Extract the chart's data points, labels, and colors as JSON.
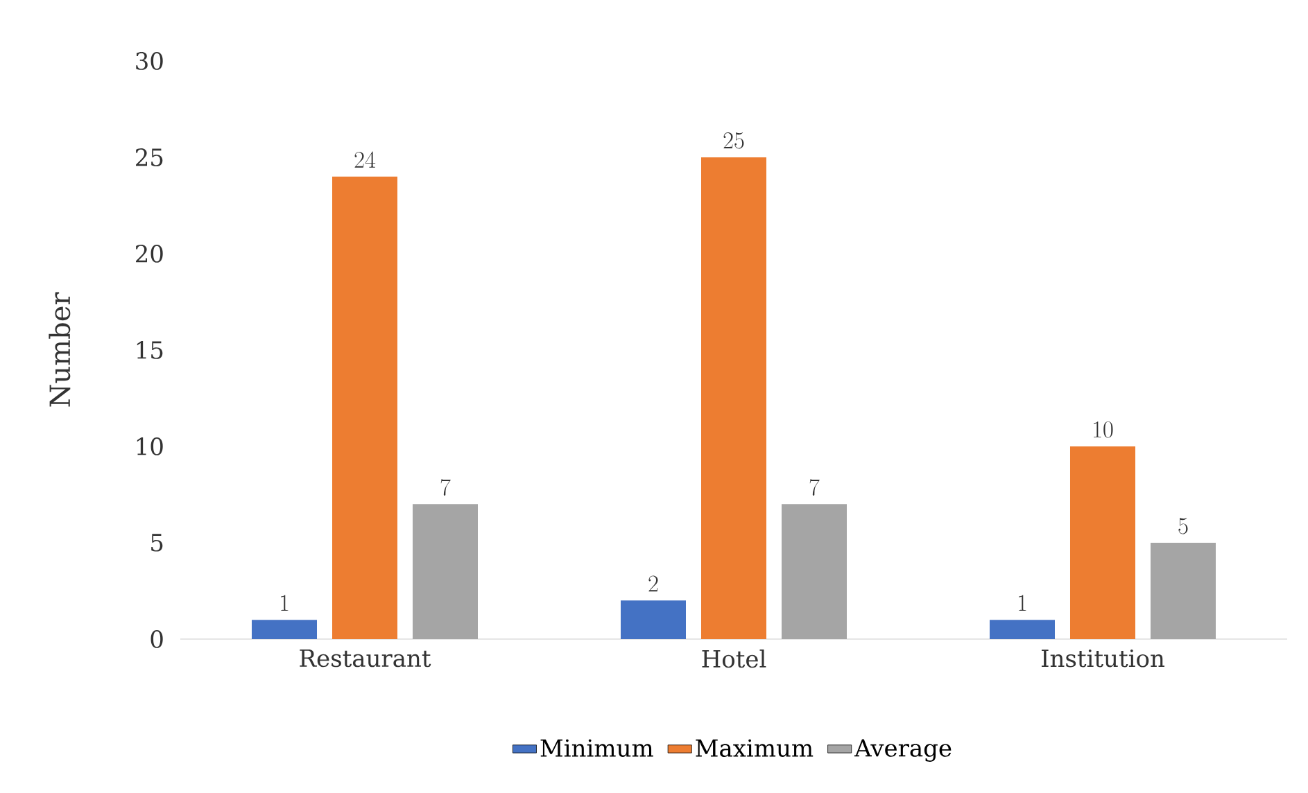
{
  "chart_data": {
    "type": "bar",
    "ylabel": "Number",
    "categories": [
      "Restaurant",
      "Hotel",
      "Institution"
    ],
    "series": [
      {
        "name": "Minimum",
        "color": "#4472c4",
        "values": [
          1,
          2,
          1
        ]
      },
      {
        "name": "Maximum",
        "color": "#ed7d31",
        "values": [
          24,
          25,
          10
        ]
      },
      {
        "name": "Average",
        "color": "#a5a5a5",
        "values": [
          7,
          7,
          5
        ]
      }
    ],
    "ylim": [
      0,
      30
    ],
    "yticks": [
      0,
      5,
      10,
      15,
      20,
      25,
      30
    ],
    "data_labels": true,
    "legend": "bottom"
  }
}
